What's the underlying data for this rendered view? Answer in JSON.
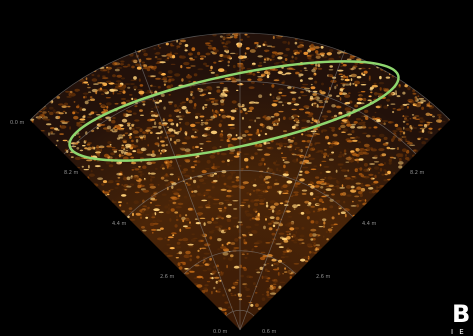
{
  "sonar": {
    "range_labels": {
      "outer_left": "0.0 m",
      "mid_left_8": "8.2 m",
      "mid_right_8": "8.2 m",
      "mid_left_4": "4.4 m",
      "mid_right_4": "4.4 m",
      "inner_left_2": "2.6 m",
      "inner_right_2": "2.6 m",
      "bottom_left": "0.0 m",
      "bottom_right": "0.6 m"
    },
    "colors": {
      "background": "#000000",
      "echo_base": "#2a1404",
      "echo_bright": "#ffc25a",
      "grid": "#8a8a8a",
      "highlight": "#8ed66e"
    }
  },
  "logo": {
    "big_text": "B",
    "small_text": "I E"
  }
}
